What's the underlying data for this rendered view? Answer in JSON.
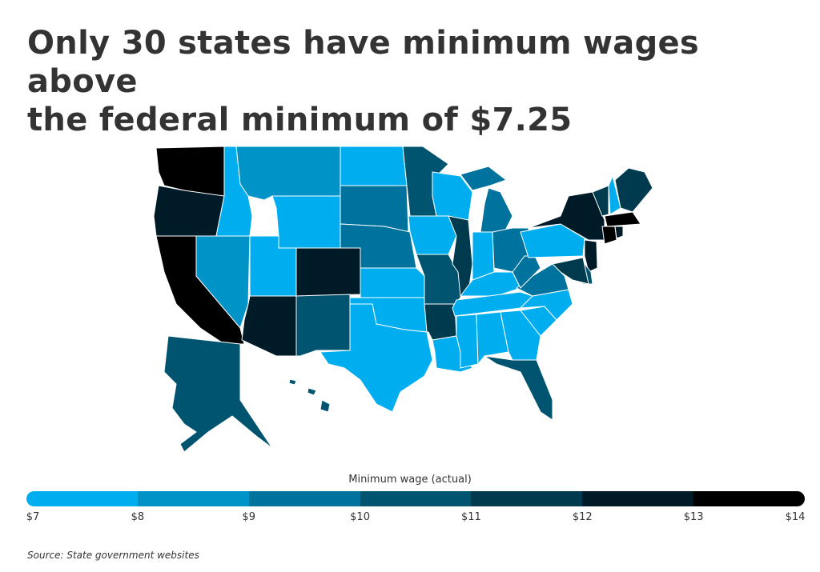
{
  "title_line1": "Only 30 states have minimum wages above",
  "title_line2": "the federal minimum of $7.25",
  "legend": {
    "title": "Minimum wage (actual)",
    "ticks": [
      "$7",
      "$8",
      "$9",
      "$10",
      "$11",
      "$12",
      "$13",
      "$14"
    ],
    "colors": [
      "#00aeef",
      "#0093c8",
      "#00729e",
      "#005470",
      "#003a4f",
      "#001b28",
      "#000000"
    ]
  },
  "source": "Source:  State government websites",
  "state_bins": {
    "WA": 6,
    "OR": 5,
    "CA": 6,
    "NV": 1,
    "ID": 0,
    "MT": 1,
    "WY": 0,
    "UT": 0,
    "AZ": 5,
    "CO": 5,
    "NM": 3,
    "ND": 0,
    "SD": 2,
    "NE": 2,
    "KS": 0,
    "OK": 0,
    "TX": 0,
    "MN": 3,
    "IA": 0,
    "MO": 3,
    "AR": 4,
    "LA": 0,
    "WI": 0,
    "IL": 4,
    "MI": 2,
    "IN": 0,
    "OH": 2,
    "KY": 0,
    "TN": 0,
    "MS": 0,
    "AL": 0,
    "GA": 0,
    "FL": 3,
    "SC": 0,
    "NC": 0,
    "VA": 2,
    "WV": 2,
    "PA": 0,
    "NY": 5,
    "VT": 4,
    "NH": 0,
    "ME": 4,
    "MA": 6,
    "RI": 5,
    "CT": 6,
    "NJ": 5,
    "DE": 3,
    "MD": 4,
    "AK": 3,
    "HI": 3
  }
}
